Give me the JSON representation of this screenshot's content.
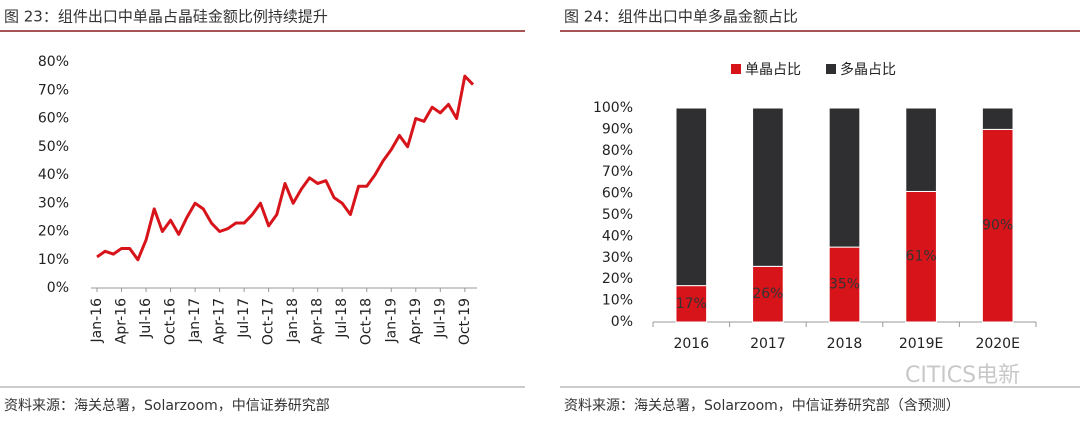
{
  "chart_data": [
    {
      "type": "line",
      "title": "图 23：组件出口中单晶占晶硅金额比例持续提升",
      "source": "资料来源：海关总署，Solarzoom，中信证券研究部",
      "categories": [
        "Jan-16",
        null,
        null,
        "Apr-16",
        null,
        null,
        "Jul-16",
        null,
        null,
        "Oct-16",
        null,
        null,
        "Jan-17",
        null,
        null,
        "Apr-17",
        null,
        null,
        "Jul-17",
        null,
        null,
        "Oct-17",
        null,
        null,
        "Jan-18",
        null,
        null,
        "Apr-18",
        null,
        null,
        "Jul-18",
        null,
        null,
        "Oct-18",
        null,
        null,
        "Jan-19",
        null,
        null,
        "Apr-19",
        null,
        null,
        "Jul-19",
        null,
        null,
        "Oct-19",
        null
      ],
      "values": [
        11,
        13,
        12,
        14,
        14,
        10,
        17,
        28,
        20,
        24,
        19,
        25,
        30,
        28,
        23,
        20,
        21,
        23,
        23,
        26,
        30,
        22,
        26,
        37,
        30,
        35,
        39,
        37,
        38,
        32,
        30,
        26,
        36,
        36,
        40,
        45,
        49,
        54,
        50,
        60,
        59,
        64,
        62,
        65,
        60,
        75,
        72
      ],
      "color": "#d7141a",
      "ylim": [
        0,
        80
      ],
      "yticks": [
        {
          "value": 0,
          "label": "0%"
        },
        {
          "value": 10,
          "label": "10%"
        },
        {
          "value": 20,
          "label": "20%"
        },
        {
          "value": 30,
          "label": "30%"
        },
        {
          "value": 40,
          "label": "40%"
        },
        {
          "value": 50,
          "label": "50%"
        },
        {
          "value": 60,
          "label": "60%"
        },
        {
          "value": 70,
          "label": "70%"
        },
        {
          "value": 80,
          "label": "80%"
        }
      ],
      "grid": false
    },
    {
      "type": "bar",
      "title": "图 24：组件出口中单多晶金额占比",
      "source": "资料来源：海关总署，Solarzoom，中信证券研究部（含预测）",
      "watermark": "CITICS电新",
      "categories": [
        "2016",
        "2017",
        "2018",
        "2019E",
        "2020E"
      ],
      "series": [
        {
          "name": "单晶占比",
          "color": "#d7141a",
          "values": [
            17,
            26,
            35,
            61,
            90
          ],
          "value_labels": [
            "17%",
            "26%",
            "35%",
            "61%",
            "90%"
          ]
        },
        {
          "name": "多晶占比",
          "color": "#2f2f31",
          "values": [
            83,
            74,
            65,
            39,
            10
          ]
        }
      ],
      "stacked": true,
      "legend": "top",
      "ylim": [
        0,
        100
      ],
      "yticks": [
        {
          "value": 0,
          "label": "0%"
        },
        {
          "value": 10,
          "label": "10%"
        },
        {
          "value": 20,
          "label": "20%"
        },
        {
          "value": 30,
          "label": "30%"
        },
        {
          "value": 40,
          "label": "40%"
        },
        {
          "value": 50,
          "label": "50%"
        },
        {
          "value": 60,
          "label": "60%"
        },
        {
          "value": 70,
          "label": "70%"
        },
        {
          "value": 80,
          "label": "80%"
        },
        {
          "value": 90,
          "label": "90%"
        },
        {
          "value": 100,
          "label": "100%"
        }
      ],
      "grid": false
    }
  ]
}
